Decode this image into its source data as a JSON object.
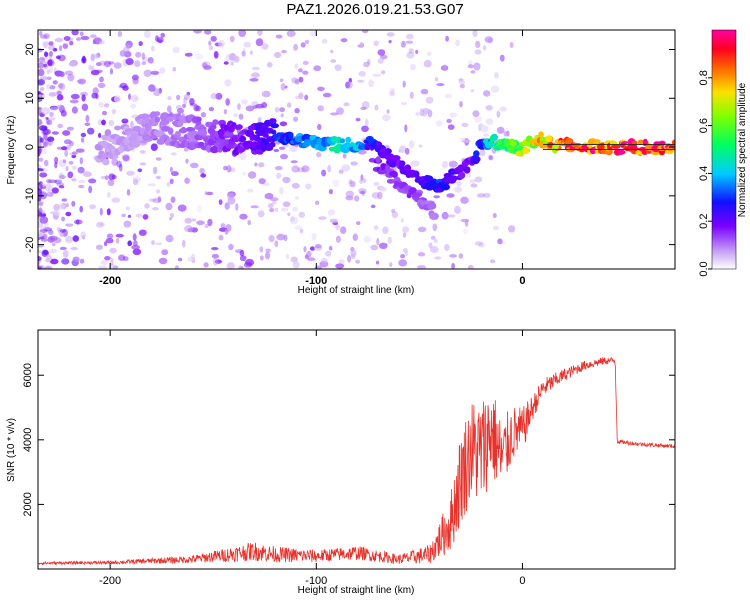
{
  "title": "PAZ1.2026.019.21.53.G07",
  "chart_data": [
    {
      "type": "heatmap",
      "name": "spectrogram",
      "xlabel": "Height of straight line (km)",
      "ylabel": "Frequency (Hz)",
      "xlim": [
        -235,
        74
      ],
      "ylim": [
        -25,
        24
      ],
      "xticks": [
        -200,
        -100,
        0
      ],
      "yticks": [
        -20,
        -10,
        0,
        10,
        20
      ],
      "colorbar": {
        "label": "Normalized spectral amplitude",
        "range": [
          0,
          1
        ],
        "ticks": [
          "0.0",
          "0.2",
          "0.4",
          "0.6",
          "0.8"
        ],
        "tick_values": [
          0.0,
          0.2,
          0.4,
          0.6,
          0.8
        ]
      },
      "ridge_main": {
        "x": [
          -205,
          -190,
          -175,
          -160,
          -150,
          -140,
          -130,
          -120,
          -110,
          -100,
          -90,
          -80,
          -75,
          -70,
          -65,
          -60,
          -55,
          -50,
          -45,
          -40,
          -35,
          -30,
          -25,
          -20,
          -15,
          -10,
          -5,
          0,
          5,
          10,
          15,
          20,
          30,
          40,
          50,
          60,
          74
        ],
        "y": [
          -1.5,
          3,
          4,
          3,
          2.5,
          1.5,
          2,
          2.5,
          1.5,
          1,
          0.5,
          0.5,
          1,
          0,
          -2,
          -3.5,
          -5,
          -6.5,
          -7.5,
          -8,
          -6.5,
          -5,
          -3,
          0,
          1,
          0.5,
          0,
          -0.5,
          1,
          1.5,
          0.5,
          0.5,
          0,
          0,
          0,
          0,
          0
        ],
        "amplitude": [
          0.08,
          0.08,
          0.1,
          0.12,
          0.15,
          0.18,
          0.2,
          0.28,
          0.35,
          0.4,
          0.45,
          0.42,
          0.3,
          0.25,
          0.22,
          0.2,
          0.2,
          0.22,
          0.26,
          0.3,
          0.25,
          0.2,
          0.2,
          0.3,
          0.45,
          0.55,
          0.62,
          0.7,
          0.75,
          0.8,
          0.85,
          0.88,
          0.9,
          0.92,
          0.95,
          0.97,
          1.0
        ]
      },
      "ridge_branch": {
        "x": [
          -72,
          -65,
          -60,
          -55,
          -50,
          -45,
          -42
        ],
        "y": [
          -3,
          -5.5,
          -7.5,
          -9,
          -10.5,
          -12.5,
          -14.5
        ],
        "amplitude": [
          0.18,
          0.18,
          0.16,
          0.15,
          0.14,
          0.12,
          0.1
        ]
      }
    },
    {
      "type": "line",
      "name": "snr",
      "xlabel": "Height of straight line (km)",
      "ylabel": "SNR (10 * v/v)",
      "xlim": [
        -235,
        74
      ],
      "ylim": [
        0,
        7400
      ],
      "xticks": [
        -200,
        -100,
        0
      ],
      "yticks": [
        2000,
        4000,
        6000
      ],
      "series_color": "#e8312a",
      "envelope": {
        "x": [
          -235,
          -200,
          -160,
          -130,
          -120,
          -100,
          -80,
          -60,
          -45,
          -35,
          -30,
          -25,
          -20,
          -15,
          -10,
          -5,
          0,
          5,
          10,
          20,
          30,
          40,
          45,
          46,
          55,
          65,
          74
        ],
        "y": [
          180,
          200,
          300,
          550,
          450,
          400,
          500,
          300,
          450,
          1400,
          2800,
          3700,
          3600,
          4300,
          3400,
          4200,
          4300,
          5000,
          5600,
          6000,
          6300,
          6450,
          6450,
          3950,
          3880,
          3830,
          3800
        ],
        "spread": [
          40,
          50,
          120,
          300,
          250,
          200,
          220,
          150,
          300,
          900,
          1500,
          1600,
          1700,
          1500,
          1200,
          900,
          700,
          400,
          300,
          200,
          150,
          120,
          100,
          60,
          60,
          60,
          60
        ]
      }
    }
  ]
}
